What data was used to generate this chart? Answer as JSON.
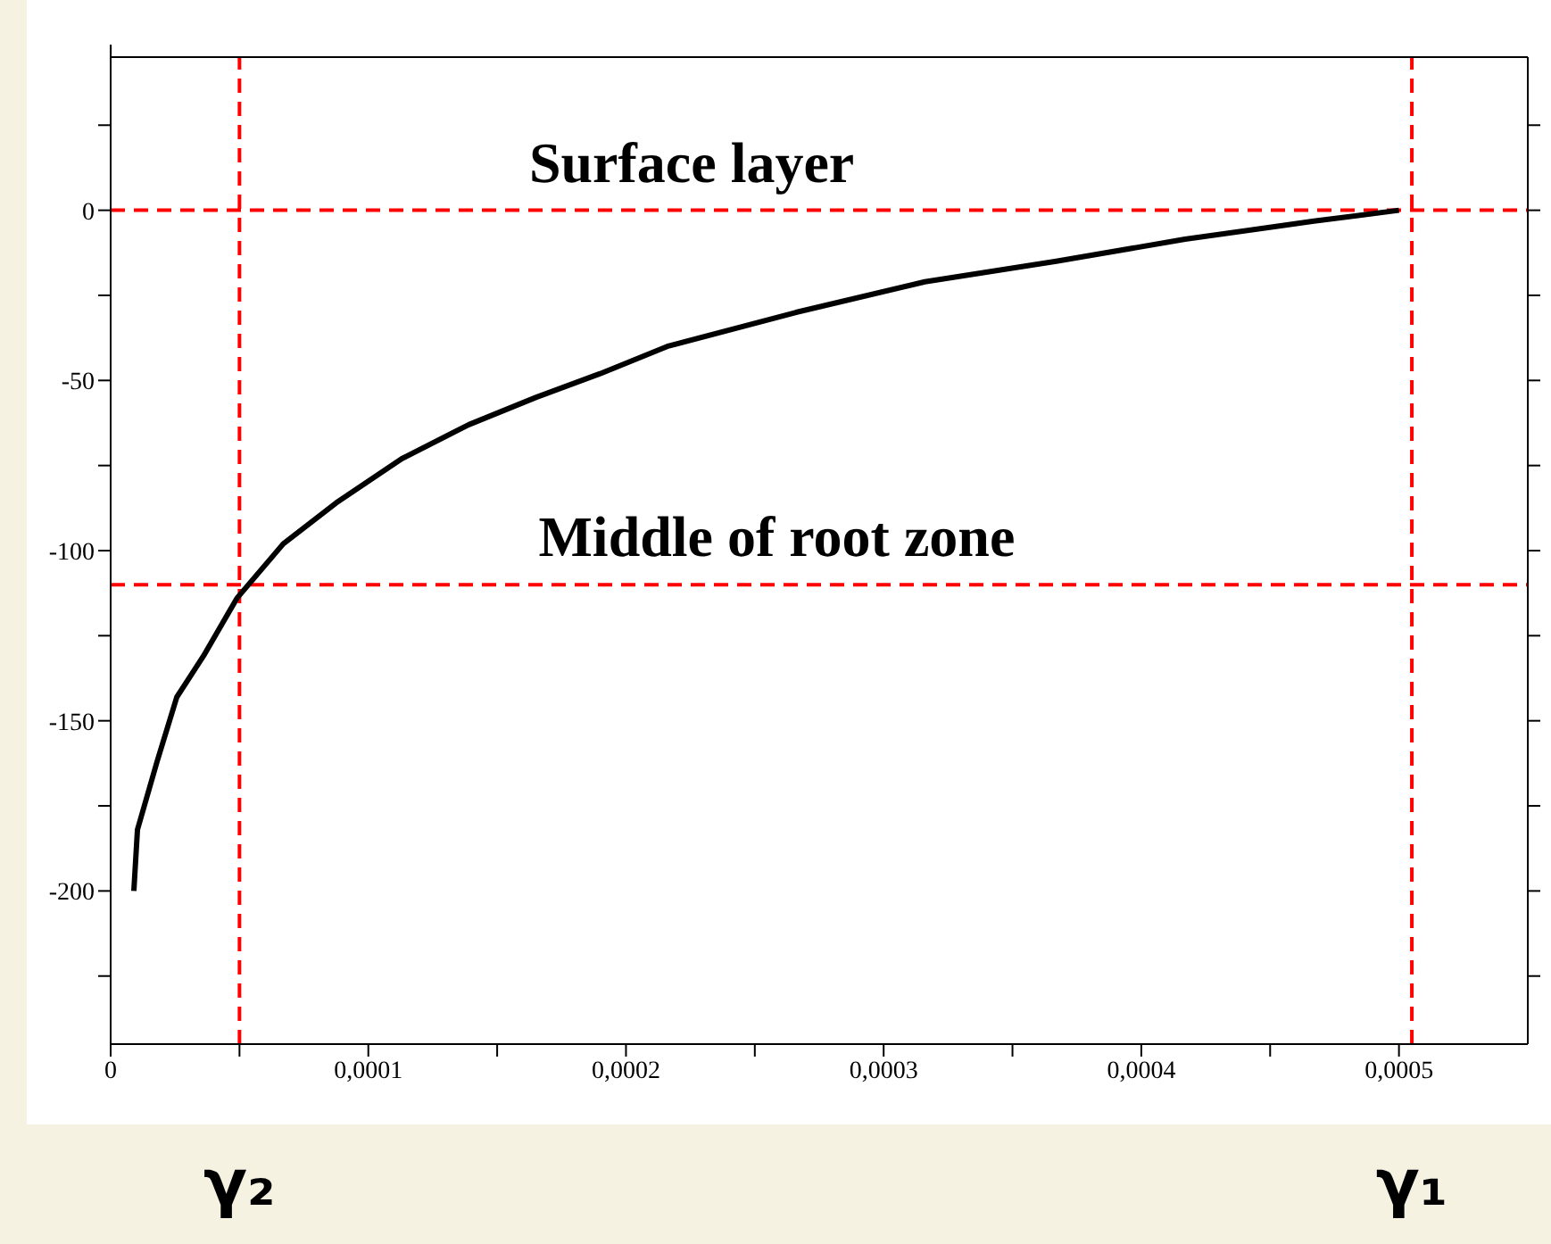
{
  "chart_data": {
    "type": "line",
    "marker": "none",
    "line_style": "solid",
    "grid": false,
    "legend": false,
    "x": [
      9e-06,
      1.04e-05,
      1.8e-05,
      2.57e-05,
      3.6e-05,
      4.9e-05,
      6.7e-05,
      8.75e-05,
      0.000113,
      0.000139,
      0.000165,
      0.00019,
      0.000216,
      0.000266,
      0.000316,
      0.000367,
      0.000417,
      0.000467,
      0.0005
    ],
    "series": [
      {
        "color": "#000000",
        "values": [
          -200,
          -182,
          -162,
          -143,
          -131,
          -114,
          -98,
          -86,
          -73,
          -63,
          -55,
          -48,
          -40,
          -30,
          -21,
          -15,
          -8.5,
          -3.2,
          0
        ]
      }
    ],
    "xlim": [
      0,
      0.00055
    ],
    "xticks": [
      0,
      {
        "value": 5e-05,
        "label": null
      },
      {
        "value": 0.0001,
        "label": "0,0001"
      },
      {
        "value": 0.00015,
        "label": null
      },
      {
        "value": 0.0002,
        "label": "0,0002"
      },
      {
        "value": 0.00025,
        "label": null
      },
      {
        "value": 0.0003,
        "label": "0,0003"
      },
      {
        "value": 0.00035,
        "label": null
      },
      {
        "value": 0.0004,
        "label": "0,0004"
      },
      {
        "value": 0.00045,
        "label": null
      },
      {
        "value": 0.0005,
        "label": "0,0005"
      }
    ],
    "ylim": [
      -245,
      45
    ],
    "yticks": [
      {
        "value": 25,
        "label": null
      },
      0,
      {
        "value": -25,
        "label": null
      },
      -50,
      {
        "value": -75,
        "label": null
      },
      -100,
      {
        "value": -125,
        "label": null
      },
      -150,
      {
        "value": -175,
        "label": null
      },
      -200,
      {
        "value": -225,
        "label": null
      }
    ],
    "ref_lines": [
      {
        "axis": "y",
        "value": 0,
        "label": "Surface layer",
        "color": "#ff0000",
        "line_style": "dashed"
      },
      {
        "axis": "y",
        "value": -110,
        "label": "Middle of root zone",
        "color": "#ff0000",
        "line_style": "dashed"
      },
      {
        "axis": "x",
        "value": 5e-05,
        "label": "γ₂",
        "color": "#ff0000",
        "line_style": "dashed"
      },
      {
        "axis": "x",
        "value": 0.000505,
        "label": "γ₁",
        "color": "#ff0000",
        "line_style": "dashed"
      }
    ]
  }
}
